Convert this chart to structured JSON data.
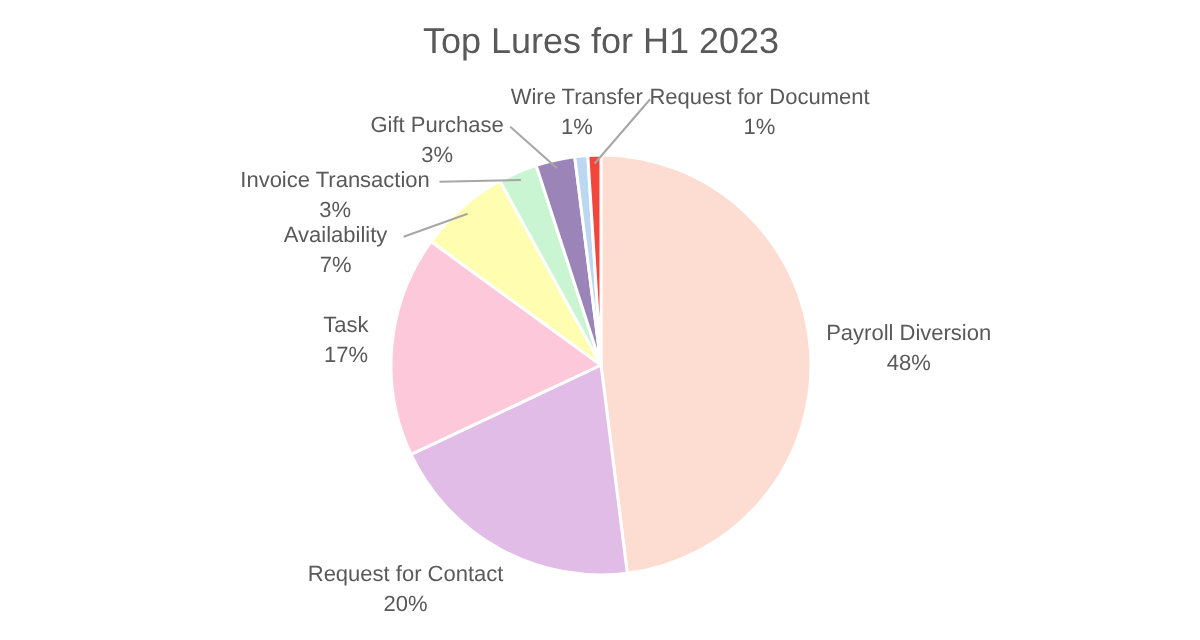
{
  "chart_data": {
    "type": "pie",
    "title": "Top Lures for H1 2023",
    "categories": [
      "Payroll Diversion",
      "Request for Contact",
      "Task",
      "Availability",
      "Invoice Transaction",
      "Gift Purchase",
      "Wire Transfer",
      "Request for Document"
    ],
    "values": [
      48,
      20,
      17,
      7,
      3,
      3,
      1,
      1
    ],
    "value_labels": [
      "48%",
      "20%",
      "17%",
      "7%",
      "3%",
      "3%",
      "1%",
      "1%"
    ],
    "colors": [
      "#fddcd2",
      "#e0bce6",
      "#fdc8d9",
      "#fefdb0",
      "#c9f5d2",
      "#9b84b8",
      "#bcd8f0",
      "#f0463c"
    ]
  }
}
